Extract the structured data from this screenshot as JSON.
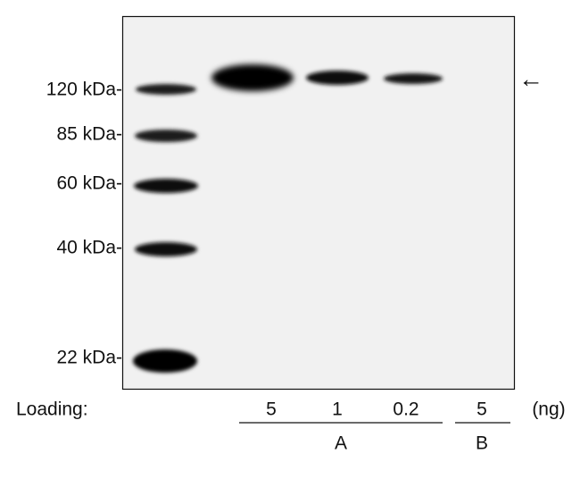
{
  "markers": [
    "120 kDa-",
    "85 kDa-",
    "60 kDa-",
    "40 kDa-",
    "22 kDa-"
  ],
  "arrow": "←",
  "loading": {
    "label": "Loading:",
    "amounts": [
      "5",
      "1",
      "0.2",
      "5"
    ],
    "unit": "(ng)"
  },
  "groups": [
    "A",
    "B"
  ]
}
